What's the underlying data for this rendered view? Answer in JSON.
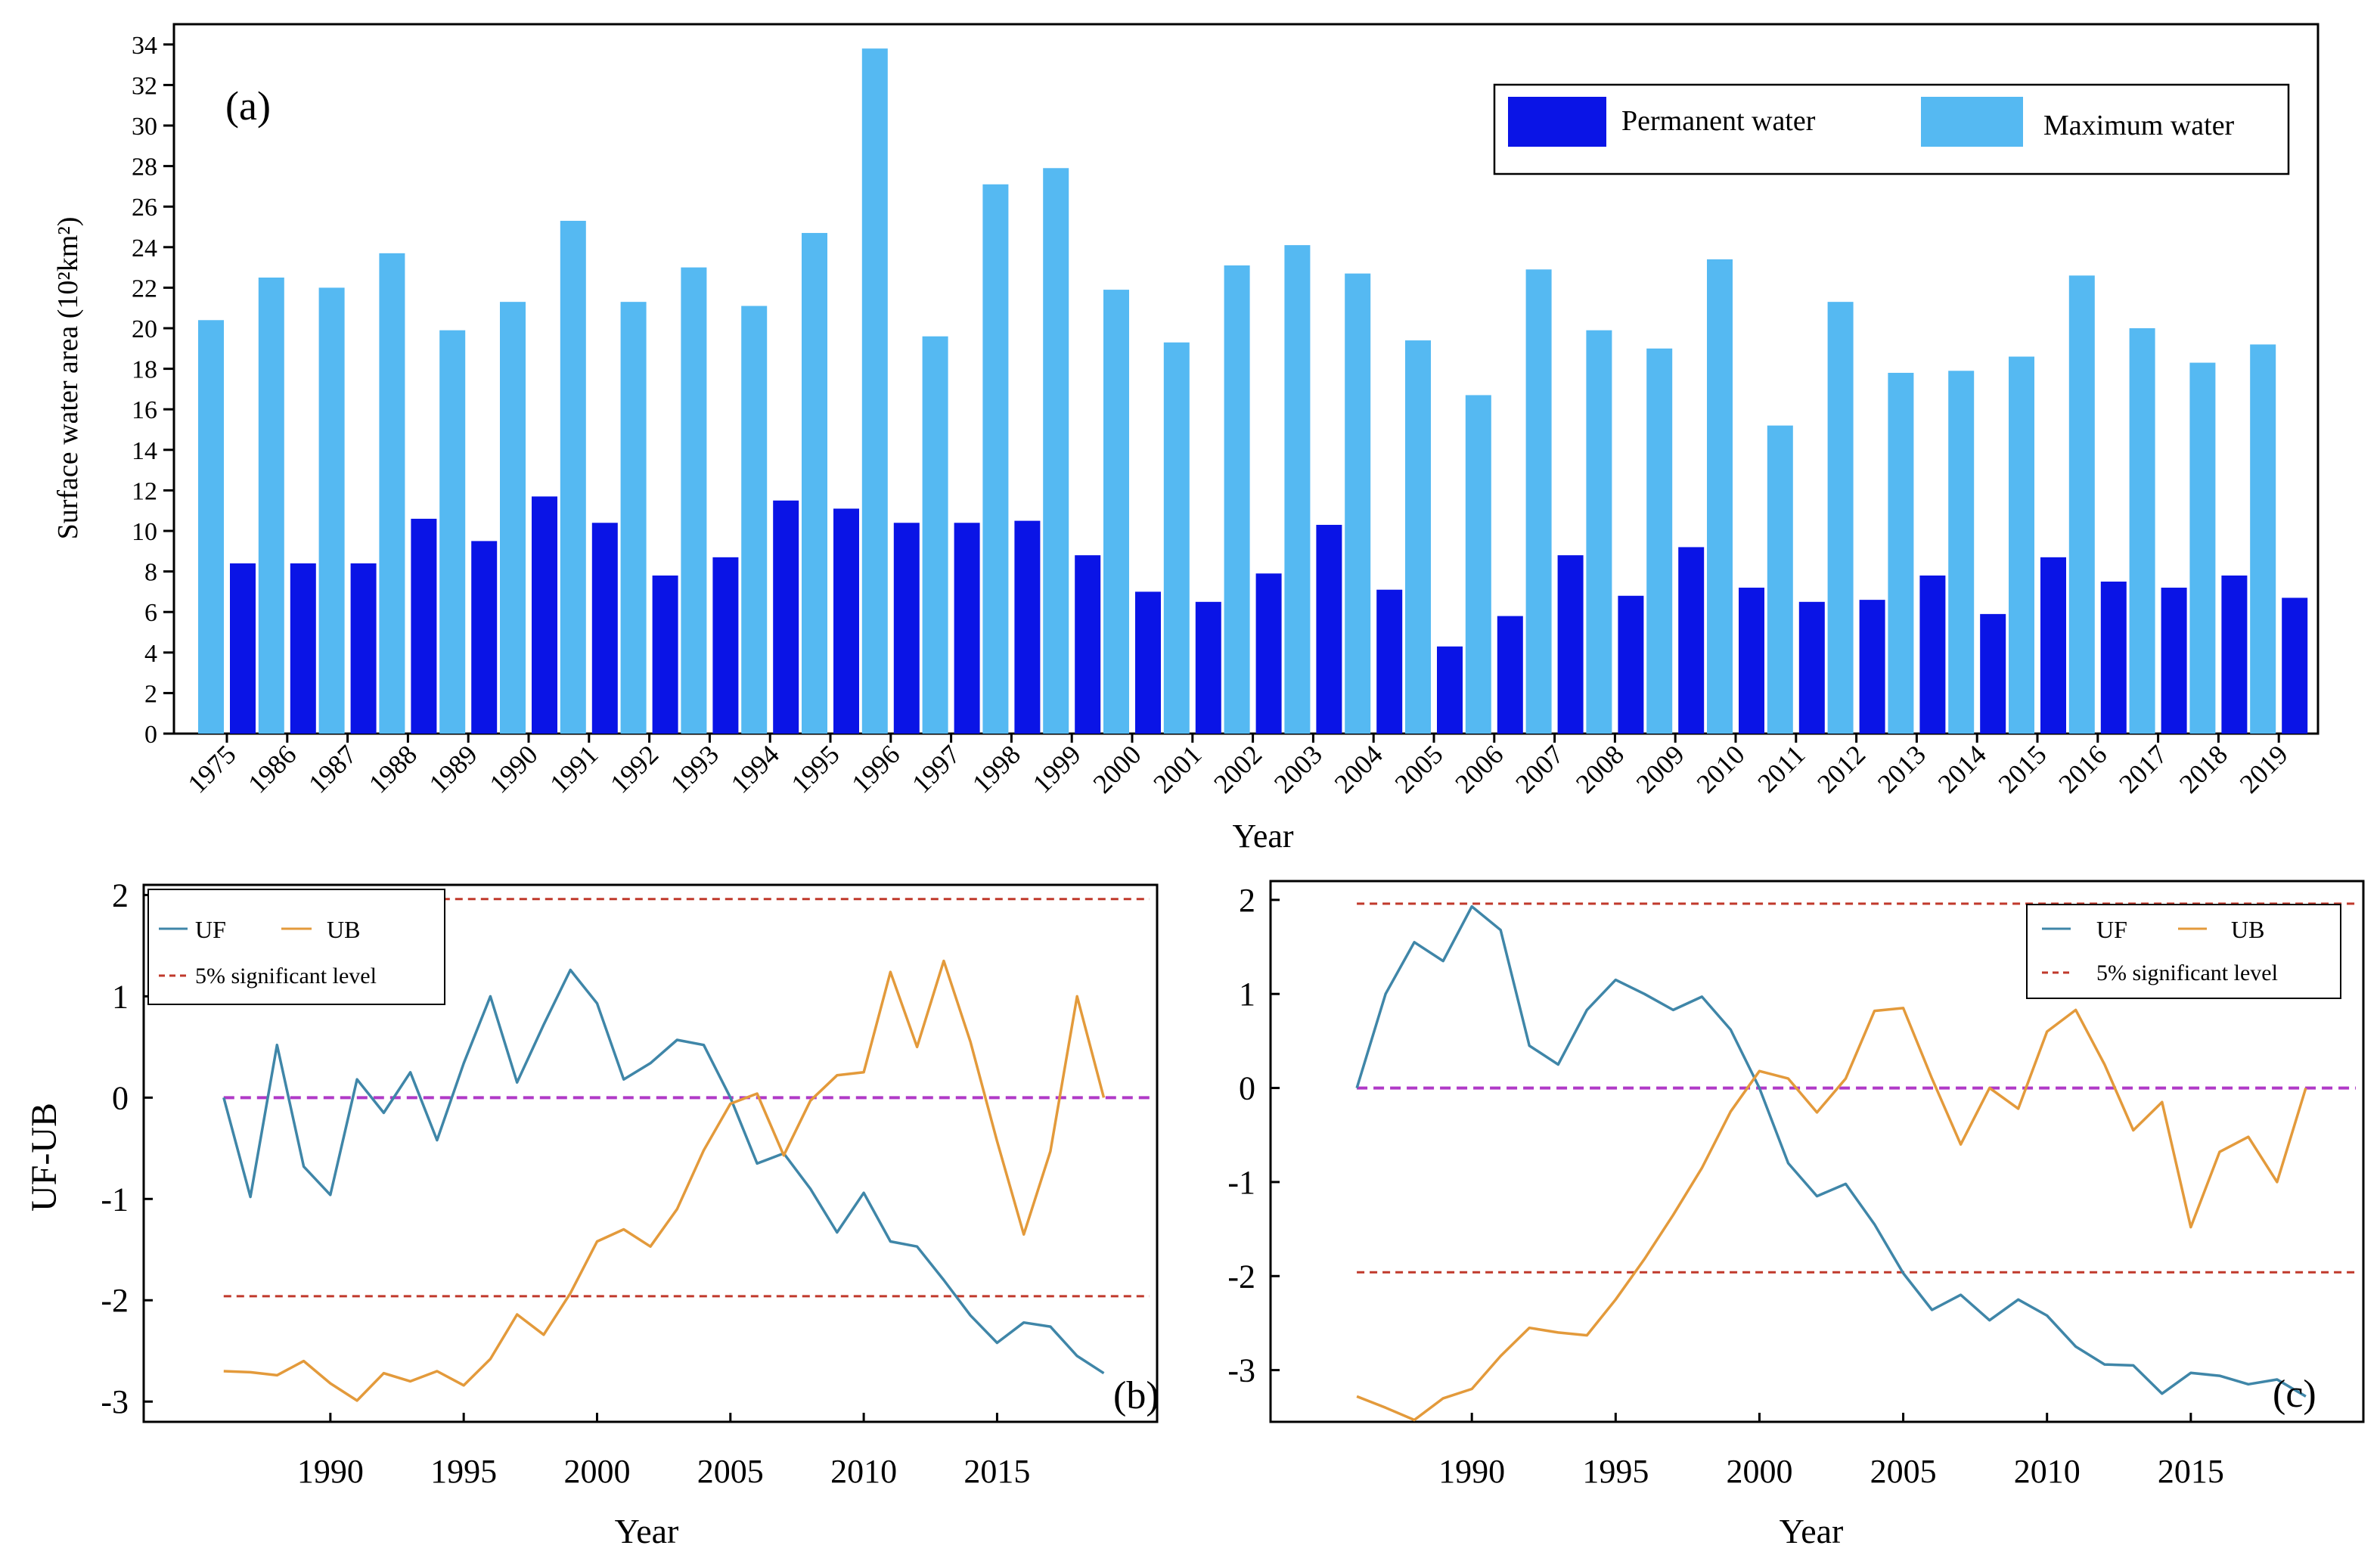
{
  "chart_data": [
    {
      "type": "bar",
      "panel_label": "(a)",
      "title": "",
      "xlabel": "Year",
      "ylabel": "Surface water area (10²km²)",
      "ylim": [
        0,
        35
      ],
      "yticks": [
        0,
        2,
        4,
        6,
        8,
        10,
        12,
        14,
        16,
        18,
        20,
        22,
        24,
        26,
        28,
        30,
        32,
        34
      ],
      "legend_position": "top-right",
      "categories": [
        "1975",
        "1986",
        "1987",
        "1988",
        "1989",
        "1990",
        "1991",
        "1992",
        "1993",
        "1994",
        "1995",
        "1996",
        "1997",
        "1998",
        "1999",
        "2000",
        "2001",
        "2002",
        "2003",
        "2004",
        "2005",
        "2006",
        "2007",
        "2008",
        "2009",
        "2010",
        "2011",
        "2012",
        "2013",
        "2014",
        "2015",
        "2016",
        "2017",
        "2018",
        "2019"
      ],
      "series": [
        {
          "name": "Permanent water",
          "color": "#0a14e6",
          "values": [
            8.4,
            8.4,
            8.4,
            10.6,
            9.5,
            11.7,
            10.4,
            7.8,
            8.7,
            11.5,
            11.1,
            10.4,
            10.4,
            10.5,
            8.8,
            7.0,
            6.5,
            7.9,
            10.3,
            7.1,
            4.3,
            5.8,
            8.8,
            6.8,
            9.2,
            7.2,
            6.5,
            6.6,
            7.8,
            5.9,
            8.7,
            7.5,
            7.2,
            7.8,
            6.7
          ]
        },
        {
          "name": "Maximum water",
          "color": "#55b9f2",
          "values": [
            20.4,
            22.5,
            22.0,
            23.7,
            19.9,
            21.3,
            25.3,
            21.3,
            23.0,
            21.1,
            24.7,
            33.8,
            19.6,
            27.1,
            27.9,
            21.9,
            19.3,
            23.1,
            24.1,
            22.7,
            19.4,
            16.7,
            22.9,
            19.9,
            19.0,
            23.4,
            15.2,
            21.3,
            17.8,
            17.9,
            18.6,
            22.6,
            20.0,
            18.3,
            19.2
          ]
        }
      ]
    },
    {
      "type": "line",
      "panel_label": "(b)",
      "xlabel": "Year",
      "ylabel": "UF-UB",
      "xlim": [
        1983,
        2021
      ],
      "ylim": [
        -3.2,
        2.1
      ],
      "xticks": [
        1990,
        1995,
        2000,
        2005,
        2010,
        2015
      ],
      "yticks": [
        -3,
        -2,
        -1,
        0,
        1,
        2
      ],
      "legend_position": "top-left",
      "significance_level": 1.96,
      "x": [
        1986,
        1987,
        1988,
        1989,
        1990,
        1991,
        1992,
        1993,
        1994,
        1995,
        1996,
        1997,
        1998,
        1999,
        2000,
        2001,
        2002,
        2003,
        2004,
        2005,
        2006,
        2007,
        2008,
        2009,
        2010,
        2011,
        2012,
        2013,
        2014,
        2015,
        2016,
        2017,
        2018,
        2019
      ],
      "series": [
        {
          "name": "UF",
          "color": "#3f86a8",
          "values": [
            0.0,
            -0.98,
            0.52,
            -0.68,
            -0.96,
            0.18,
            -0.15,
            0.25,
            -0.42,
            0.34,
            1.0,
            0.15,
            0.72,
            1.26,
            0.93,
            0.18,
            0.34,
            0.57,
            0.52,
            0.0,
            -0.65,
            -0.55,
            -0.9,
            -1.33,
            -0.94,
            -1.42,
            -1.47,
            -1.8,
            -2.15,
            -2.42,
            -2.22,
            -2.26,
            -2.55,
            -2.72
          ]
        },
        {
          "name": "UB",
          "color": "#e39a3b",
          "values": [
            -2.7,
            -2.71,
            -2.74,
            -2.6,
            -2.82,
            -2.99,
            -2.72,
            -2.8,
            -2.7,
            -2.84,
            -2.58,
            -2.14,
            -2.34,
            -1.93,
            -1.42,
            -1.3,
            -1.47,
            -1.1,
            -0.52,
            -0.06,
            0.04,
            -0.57,
            -0.03,
            0.22,
            0.25,
            1.24,
            0.5,
            1.35,
            0.55,
            -0.43,
            -1.35,
            -0.53,
            1.0,
            0.0
          ]
        }
      ],
      "reference_lines": [
        {
          "name": "5% significant level",
          "color": "#c0392b",
          "values": [
            1.96,
            -1.96
          ]
        },
        {
          "name": "zero",
          "color": "#b03ac7",
          "values": [
            0
          ]
        }
      ]
    },
    {
      "type": "line",
      "panel_label": "(c)",
      "xlabel": "Year",
      "ylabel": "",
      "xlim": [
        1983,
        2021
      ],
      "ylim": [
        -3.55,
        2.2
      ],
      "xticks": [
        1990,
        1995,
        2000,
        2005,
        2010,
        2015
      ],
      "yticks": [
        -3,
        -2,
        -1,
        0,
        1,
        2
      ],
      "legend_position": "top-right",
      "significance_level": 1.96,
      "x": [
        1986,
        1987,
        1988,
        1989,
        1990,
        1991,
        1992,
        1993,
        1994,
        1995,
        1996,
        1997,
        1998,
        1999,
        2000,
        2001,
        2002,
        2003,
        2004,
        2005,
        2006,
        2007,
        2008,
        2009,
        2010,
        2011,
        2012,
        2013,
        2014,
        2015,
        2016,
        2017,
        2018,
        2019
      ],
      "series": [
        {
          "name": "UF",
          "color": "#3f86a8",
          "values": [
            0.0,
            1.0,
            1.55,
            1.35,
            1.93,
            1.68,
            0.45,
            0.25,
            0.83,
            1.15,
            1.0,
            0.83,
            0.97,
            0.62,
            0.0,
            -0.8,
            -1.15,
            -1.02,
            -1.45,
            -1.97,
            -2.36,
            -2.2,
            -2.47,
            -2.25,
            -2.42,
            -2.75,
            -2.94,
            -2.95,
            -3.25,
            -3.03,
            -3.06,
            -3.15,
            -3.1,
            -3.28
          ]
        },
        {
          "name": "UB",
          "color": "#e39a3b",
          "values": [
            -3.28,
            -3.4,
            -3.53,
            -3.3,
            -3.2,
            -2.85,
            -2.55,
            -2.6,
            -2.63,
            -2.25,
            -1.82,
            -1.35,
            -0.85,
            -0.25,
            0.18,
            0.1,
            -0.26,
            0.1,
            0.82,
            0.85,
            0.1,
            -0.6,
            0.0,
            -0.22,
            0.6,
            0.83,
            0.25,
            -0.45,
            -0.15,
            -1.48,
            -0.68,
            -0.52,
            -1.0,
            0.0
          ]
        }
      ],
      "reference_lines": [
        {
          "name": "5% significant level",
          "color": "#c0392b",
          "values": [
            1.96,
            -1.96
          ]
        },
        {
          "name": "zero",
          "color": "#b03ac7",
          "values": [
            0
          ]
        }
      ]
    }
  ]
}
